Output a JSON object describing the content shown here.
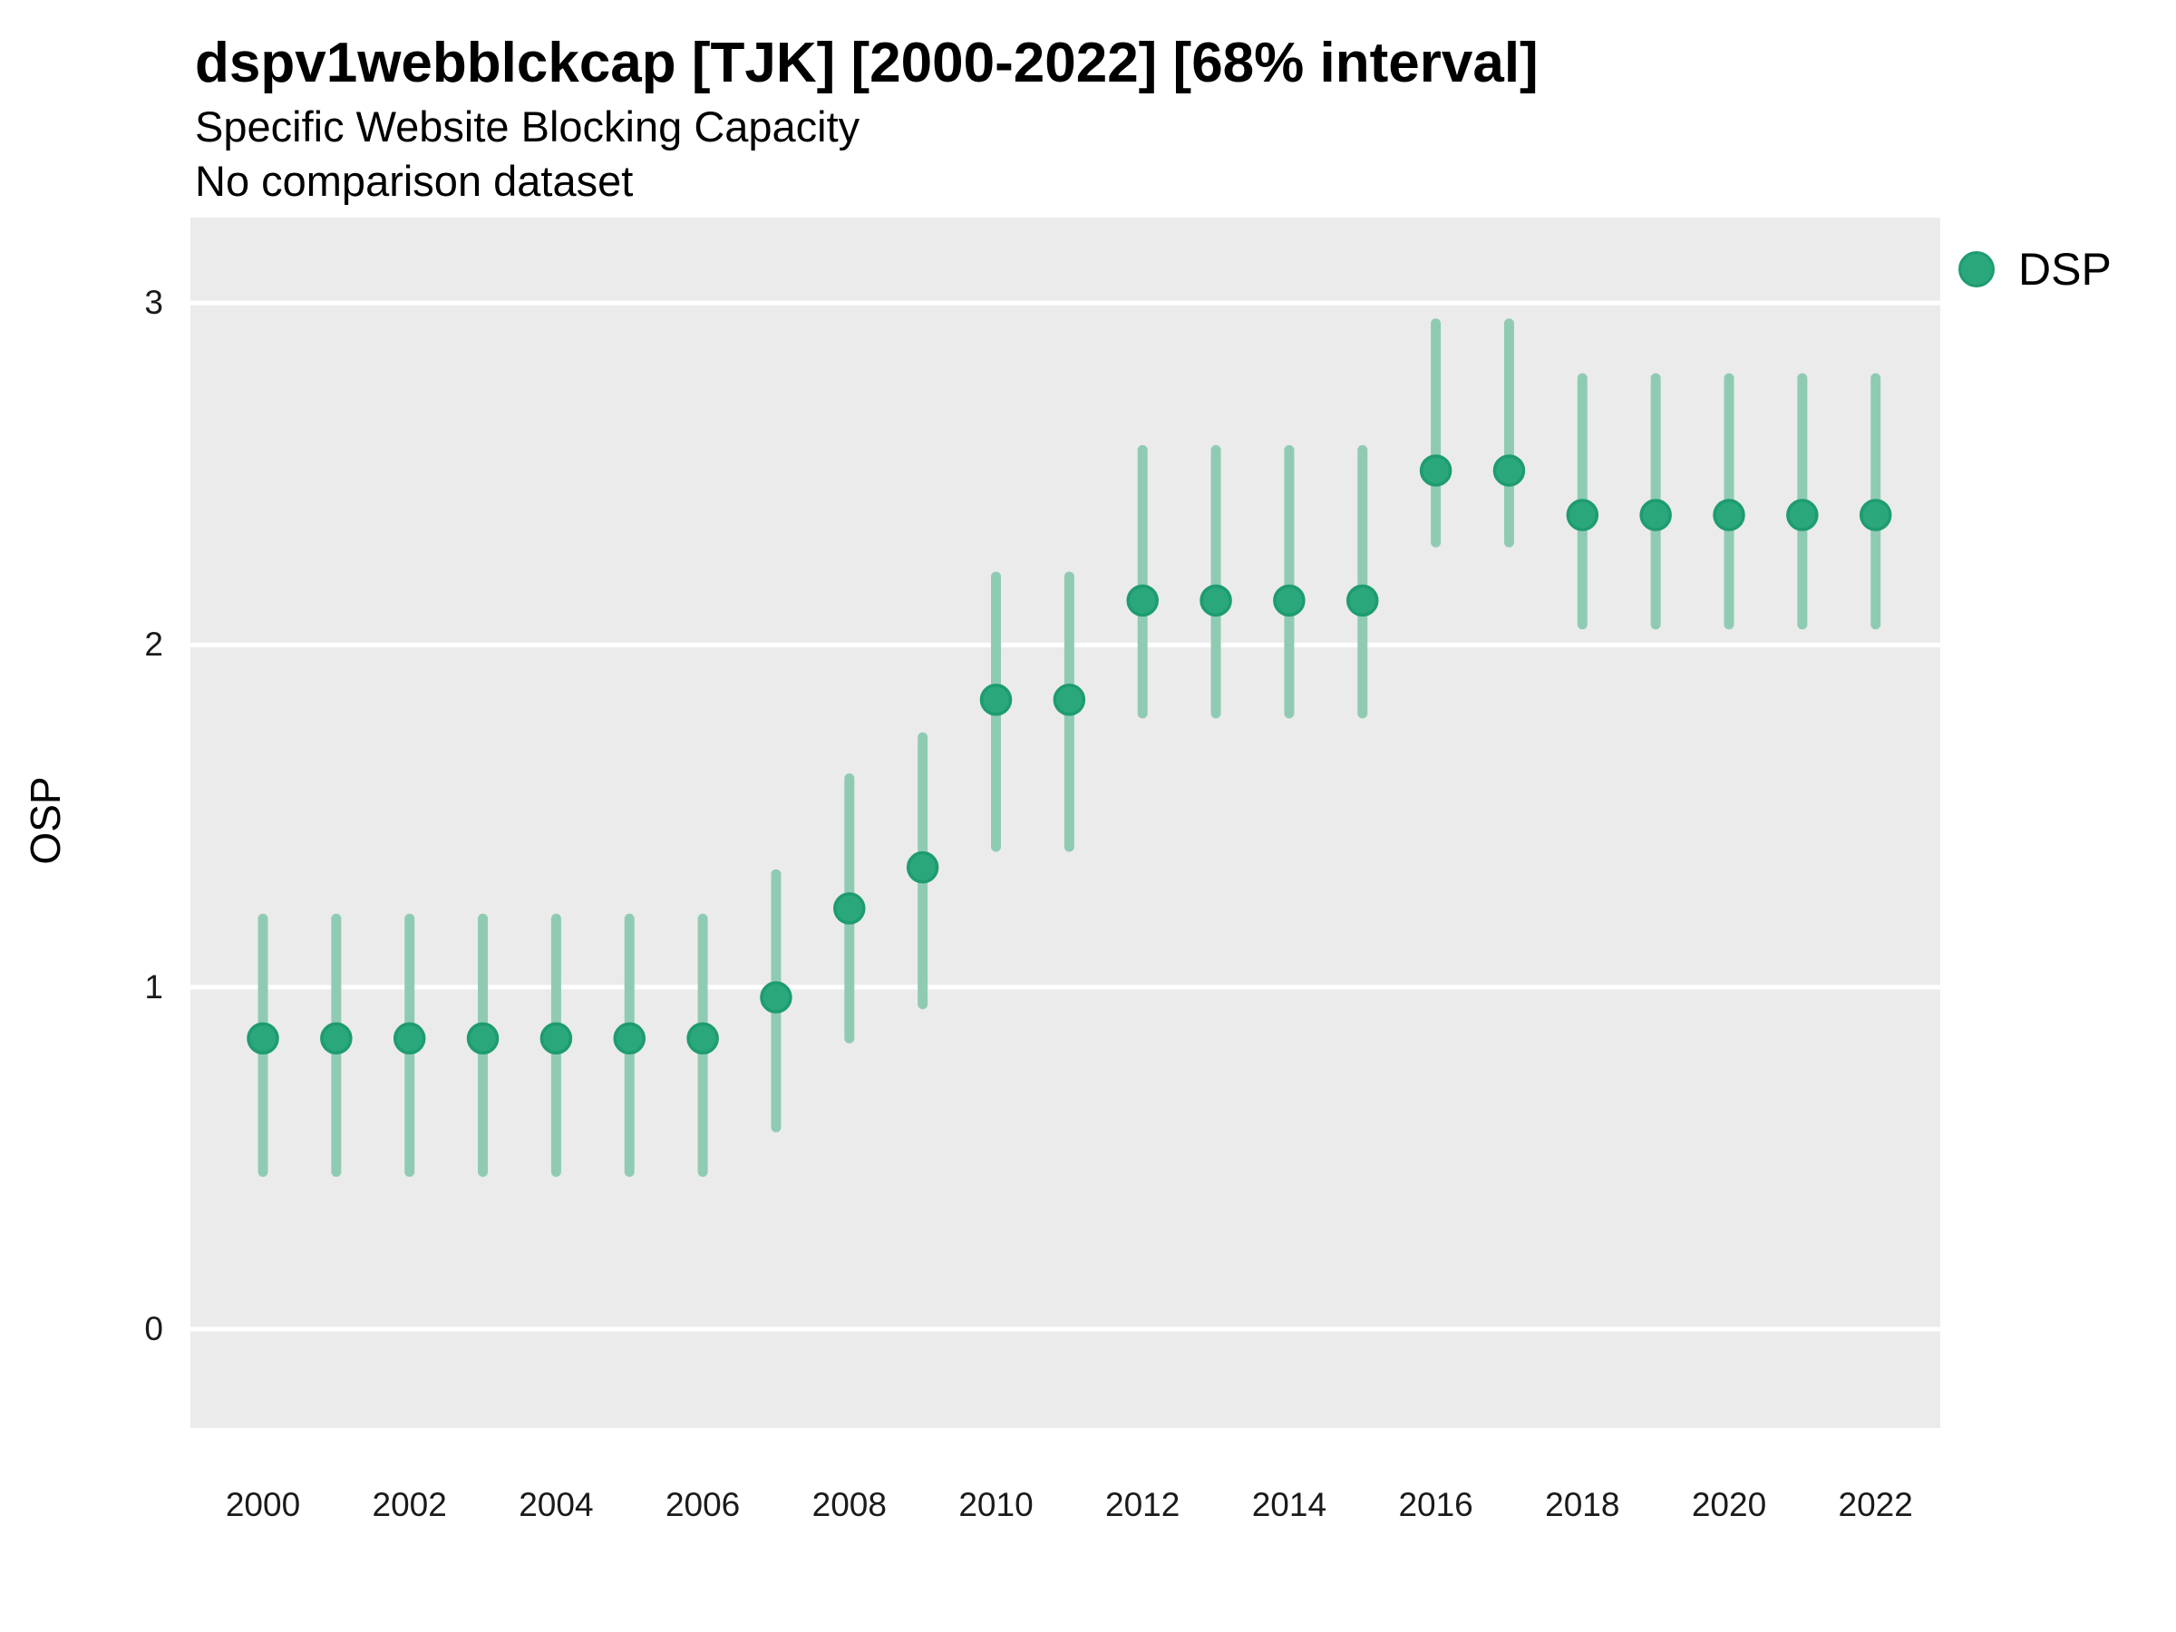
{
  "chart_data": {
    "type": "scatter",
    "title": "dspv1webblckcap [TJK] [2000-2022] [68% interval]",
    "subtitle": "Specific Website Blocking Capacity",
    "note": "No comparison dataset",
    "xlabel": "",
    "ylabel": "OSP",
    "interval": "68%",
    "x": [
      2000,
      2001,
      2002,
      2003,
      2004,
      2005,
      2006,
      2007,
      2008,
      2009,
      2010,
      2011,
      2012,
      2013,
      2014,
      2015,
      2016,
      2017,
      2018,
      2019,
      2020,
      2021,
      2022
    ],
    "series": [
      {
        "name": "DSP",
        "values": [
          0.85,
          0.85,
          0.85,
          0.85,
          0.85,
          0.85,
          0.85,
          0.97,
          1.23,
          1.35,
          1.84,
          1.84,
          2.13,
          2.13,
          2.13,
          2.13,
          2.51,
          2.51,
          2.38,
          2.38,
          2.38,
          2.38,
          2.38
        ],
        "lower": [
          0.46,
          0.46,
          0.46,
          0.46,
          0.46,
          0.46,
          0.46,
          0.59,
          0.85,
          0.95,
          1.41,
          1.41,
          1.8,
          1.8,
          1.8,
          1.8,
          2.3,
          2.3,
          2.06,
          2.06,
          2.06,
          2.06,
          2.06
        ],
        "upper": [
          1.2,
          1.2,
          1.2,
          1.2,
          1.2,
          1.2,
          1.2,
          1.33,
          1.61,
          1.73,
          2.2,
          2.2,
          2.57,
          2.57,
          2.57,
          2.57,
          2.94,
          2.94,
          2.78,
          2.78,
          2.78,
          2.78,
          2.78
        ]
      }
    ],
    "x_axis": {
      "ticks": [
        2000,
        2002,
        2004,
        2006,
        2008,
        2010,
        2012,
        2014,
        2016,
        2018,
        2020,
        2022
      ],
      "range": [
        1999.0,
        2022.9
      ]
    },
    "y_axis": {
      "ticks": [
        0,
        1,
        2,
        3
      ],
      "range": [
        -0.29,
        3.25
      ]
    },
    "grid": {
      "horizontal_major": true,
      "vertical": false
    },
    "legend": {
      "position": "right",
      "entries": [
        {
          "label": "DSP",
          "color": "#2aa87c"
        }
      ]
    },
    "colors": {
      "point": "#2aa87c",
      "point_border": "#1e9c70",
      "interval_bar": "#8fcbb3",
      "panel_bg": "#ebebeb",
      "grid": "#ffffff",
      "background": "#ffffff",
      "text": "#000000"
    }
  }
}
